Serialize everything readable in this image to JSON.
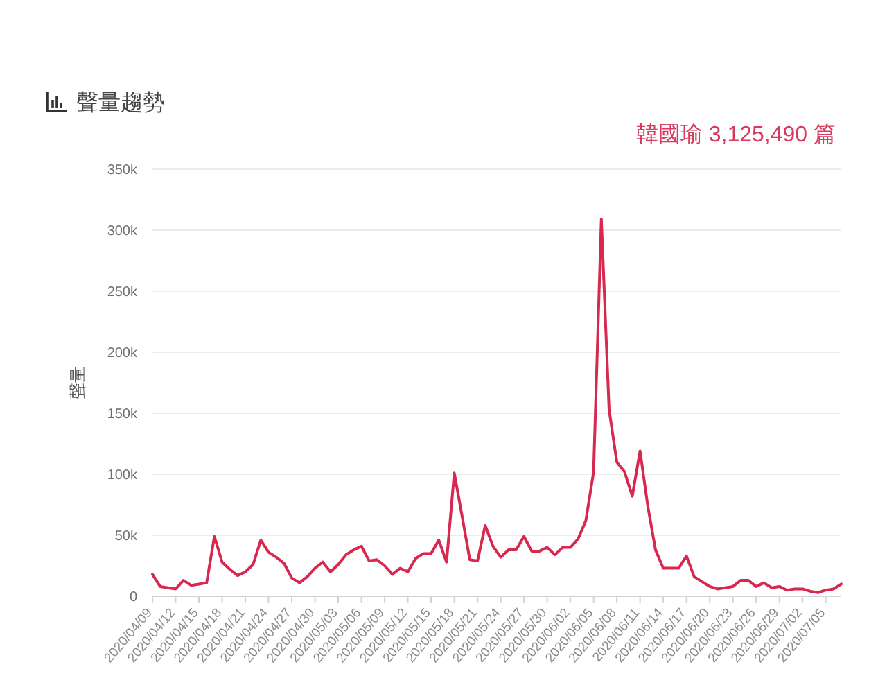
{
  "chart_data": {
    "type": "line",
    "title": "聲量趨勢",
    "subtitle": "韓國瑜 3,125,490 篇",
    "ylabel": "聲量",
    "categories": [
      "2020/04/09",
      null,
      null,
      "2020/04/12",
      null,
      null,
      "2020/04/15",
      null,
      null,
      "2020/04/18",
      null,
      null,
      "2020/04/21",
      null,
      null,
      "2020/04/24",
      null,
      null,
      "2020/04/27",
      null,
      null,
      "2020/04/30",
      null,
      null,
      "2020/05/03",
      null,
      null,
      "2020/05/06",
      null,
      null,
      "2020/05/09",
      null,
      null,
      "2020/05/12",
      null,
      null,
      "2020/05/15",
      null,
      null,
      "2020/05/18",
      null,
      null,
      "2020/05/21",
      null,
      null,
      "2020/05/24",
      null,
      null,
      "2020/05/27",
      null,
      null,
      "2020/05/30",
      null,
      null,
      "2020/06/02",
      null,
      null,
      "2020/06/05",
      null,
      null,
      "2020/06/08",
      null,
      null,
      "2020/06/11",
      null,
      null,
      "2020/06/14",
      null,
      null,
      "2020/06/17",
      null,
      null,
      "2020/06/20",
      null,
      null,
      "2020/06/23",
      null,
      null,
      "2020/06/26",
      null,
      null,
      "2020/06/29",
      null,
      null,
      "2020/07/02",
      null,
      null,
      "2020/07/05",
      null,
      null
    ],
    "series": [
      {
        "color": "#d7284f",
        "values": [
          18000,
          8000,
          7000,
          6000,
          13000,
          9000,
          10000,
          11000,
          49000,
          28000,
          22000,
          17000,
          20000,
          26000,
          46000,
          36000,
          32000,
          27000,
          15000,
          11000,
          16000,
          23000,
          28000,
          20000,
          26000,
          34000,
          38000,
          41000,
          29000,
          30000,
          25000,
          18000,
          23000,
          20000,
          31000,
          35000,
          35000,
          46000,
          28000,
          101000,
          66000,
          30000,
          29000,
          58000,
          41000,
          32000,
          38000,
          38000,
          49000,
          37000,
          37000,
          40000,
          34000,
          40000,
          40000,
          47000,
          62000,
          102000,
          309000,
          153000,
          110000,
          102000,
          82000,
          119000,
          74000,
          38000,
          23000,
          23000,
          23000,
          33000,
          16000,
          12000,
          8000,
          6000,
          7000,
          8000,
          13000,
          13000,
          8000,
          11000,
          7000,
          8000,
          5000,
          6000,
          6000,
          4000,
          3000,
          5000,
          6000,
          10000
        ]
      }
    ],
    "ylim": [
      0,
      350000
    ],
    "yticks": [
      0,
      {
        "value": 50000,
        "label": "50k"
      },
      {
        "value": 100000,
        "label": "100k"
      },
      {
        "value": 150000,
        "label": "150k"
      },
      {
        "value": 200000,
        "label": "200k"
      },
      {
        "value": 250000,
        "label": "250k"
      },
      {
        "value": 300000,
        "label": "300k"
      },
      {
        "value": 350000,
        "label": "350k"
      }
    ],
    "grid": "y"
  }
}
